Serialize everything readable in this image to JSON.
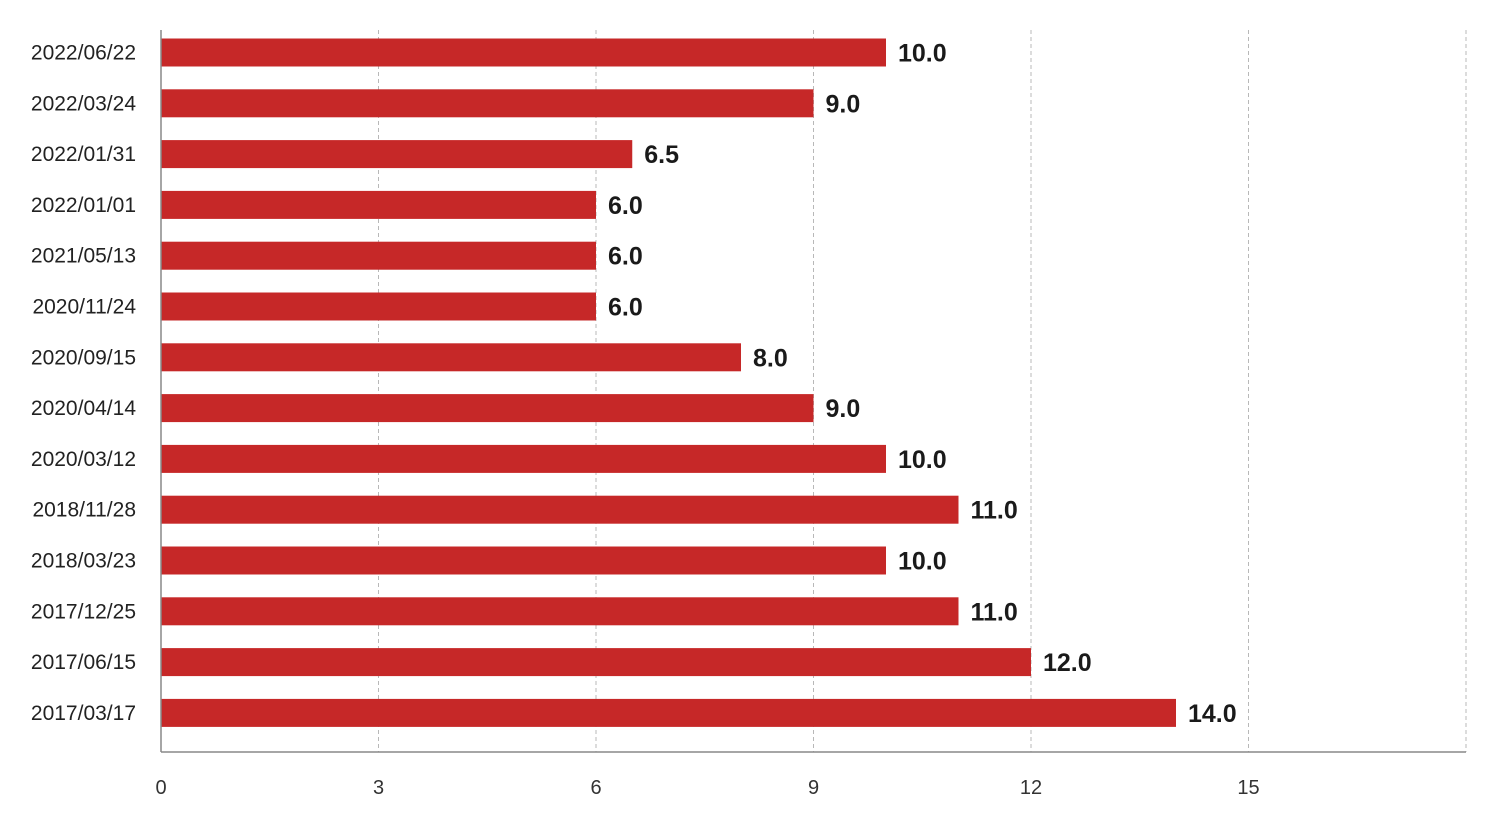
{
  "chart_data": {
    "type": "bar",
    "orientation": "horizontal",
    "categories": [
      "2022/06/22",
      "2022/03/24",
      "2022/01/31",
      "2022/01/01",
      "2021/05/13",
      "2020/11/24",
      "2020/09/15",
      "2020/04/14",
      "2020/03/12",
      "2018/11/28",
      "2018/03/23",
      "2017/12/25",
      "2017/06/15",
      "2017/03/17"
    ],
    "values": [
      10.0,
      9.0,
      6.5,
      6.0,
      6.0,
      6.0,
      8.0,
      9.0,
      10.0,
      11.0,
      10.0,
      11.0,
      12.0,
      14.0
    ],
    "value_labels": [
      "10.0",
      "9.0",
      "6.5",
      "6.0",
      "6.0",
      "6.0",
      "8.0",
      "9.0",
      "10.0",
      "11.0",
      "10.0",
      "11.0",
      "12.0",
      "14.0"
    ],
    "xticks": [
      0,
      3,
      6,
      9,
      12,
      15
    ],
    "xlim": [
      0,
      18
    ],
    "grid": "vertical dashed",
    "bar_color": "#c62828",
    "title": "",
    "xlabel": "",
    "ylabel": ""
  }
}
